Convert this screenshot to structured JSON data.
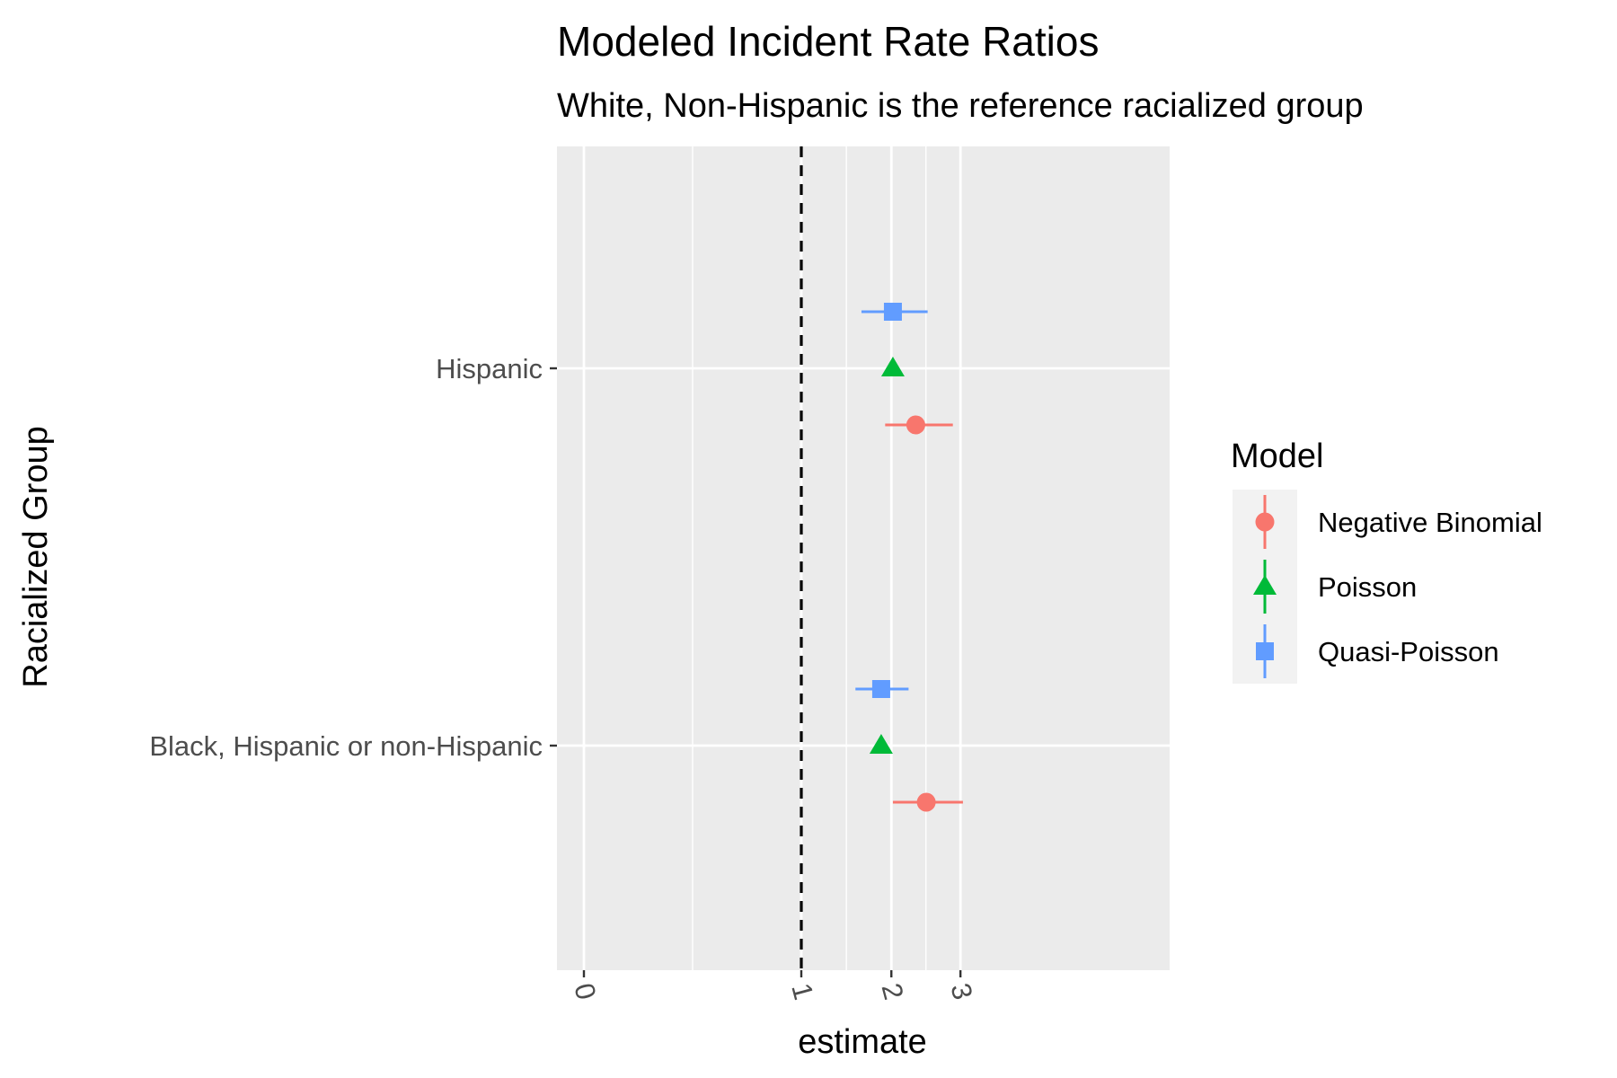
{
  "chart_data": {
    "type": "scatter",
    "title": "Modeled Incident Rate Ratios",
    "subtitle": "White, Non-Hispanic is the reference racialized group",
    "xlabel": "estimate",
    "ylabel": "Racialized Group",
    "categories": [
      "Hispanic",
      "Black, Hispanic or non-Hispanic"
    ],
    "x_ticks": [
      0,
      1,
      2,
      3
    ],
    "x_tick_labels": [
      "0",
      "1",
      "2",
      "3"
    ],
    "xlim": [
      -0.1,
      3.2
    ],
    "x_scale": "sqrt",
    "grid": true,
    "reference_line": {
      "x": 1,
      "style": "dashed",
      "color": "#000000"
    },
    "legend": {
      "title": "Model",
      "position": "right"
    },
    "series": [
      {
        "name": "Negative Binomial",
        "color": "#F8766D",
        "shape": "circle",
        "points": [
          {
            "category": "Hispanic",
            "estimate": 2.33,
            "low": 1.92,
            "high": 2.88
          },
          {
            "category": "Black, Hispanic or non-Hispanic",
            "estimate": 2.48,
            "low": 2.02,
            "high": 3.04
          }
        ]
      },
      {
        "name": "Poisson",
        "color": "#00BA38",
        "shape": "triangle",
        "points": [
          {
            "category": "Hispanic",
            "estimate": 2.02,
            "low": 1.97,
            "high": 2.08
          },
          {
            "category": "Black, Hispanic or non-Hispanic",
            "estimate": 1.87,
            "low": 1.82,
            "high": 1.92
          }
        ]
      },
      {
        "name": "Quasi-Poisson",
        "color": "#619CFF",
        "shape": "square",
        "points": [
          {
            "category": "Hispanic",
            "estimate": 2.02,
            "low": 1.63,
            "high": 2.5
          },
          {
            "category": "Black, Hispanic or non-Hispanic",
            "estimate": 1.87,
            "low": 1.56,
            "high": 2.23
          }
        ]
      }
    ]
  }
}
